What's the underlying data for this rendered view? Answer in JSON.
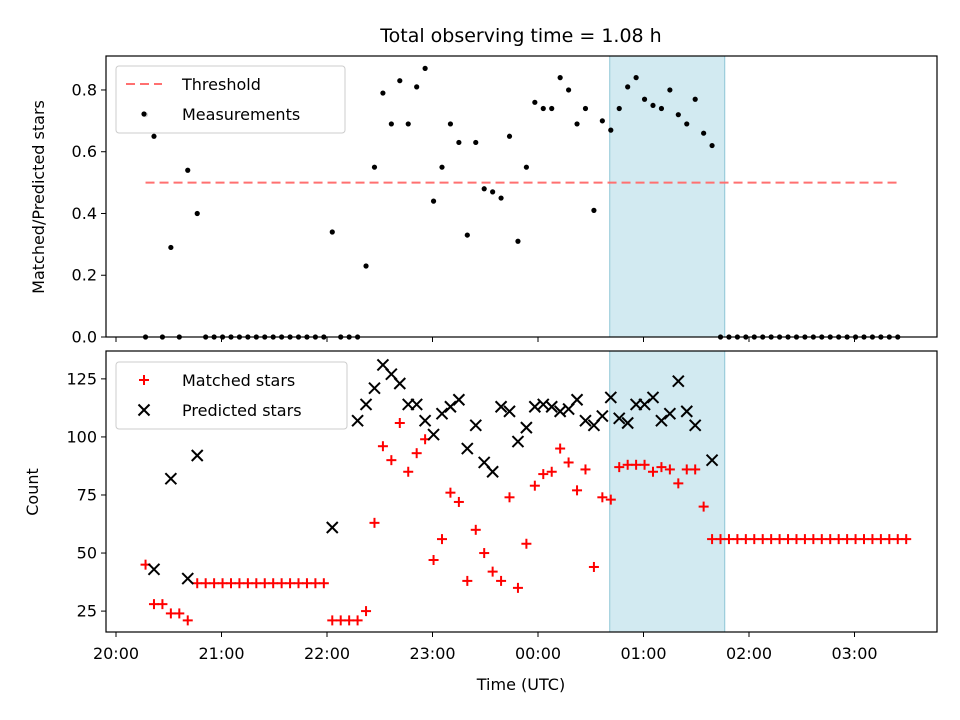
{
  "title": "Total observing time = 1.08 h",
  "xlabel": "Time (UTC)",
  "x_ticks": [
    "20:00",
    "21:00",
    "22:00",
    "23:00",
    "00:00",
    "01:00",
    "02:00",
    "03:00"
  ],
  "colors": {
    "threshold": "#ff7070",
    "measurements": "#000000",
    "matched": "#ff0000",
    "predicted": "#000000",
    "span_fill": "#add8e6"
  },
  "chart_data": [
    {
      "type": "scatter",
      "ylabel": "Matched/Predicted stars",
      "ylim": [
        0,
        0.91
      ],
      "y_ticks": [
        0.0,
        0.2,
        0.4,
        0.6,
        0.8
      ],
      "x_unit": "hours after 20:00 UTC",
      "highlight_span": [
        4.68,
        5.77
      ],
      "legend": {
        "position": "upper-left",
        "entries": [
          "Threshold",
          "Measurements"
        ]
      },
      "threshold": {
        "name": "Threshold",
        "value": 0.5,
        "x_range": [
          0.28,
          7.43
        ],
        "style": "dashed"
      },
      "series": [
        {
          "name": "Measurements",
          "points": [
            [
              0.28,
              0.0
            ],
            [
              0.28,
              0.72
            ],
            [
              0.36,
              0.65
            ],
            [
              0.44,
              0.0
            ],
            [
              0.52,
              0.29
            ],
            [
              0.6,
              0.0
            ],
            [
              0.68,
              0.54
            ],
            [
              0.77,
              0.4
            ],
            [
              0.85,
              0.0
            ],
            [
              0.93,
              0.0
            ],
            [
              1.01,
              0.0
            ],
            [
              1.09,
              0.0
            ],
            [
              1.17,
              0.0
            ],
            [
              1.25,
              0.0
            ],
            [
              1.33,
              0.0
            ],
            [
              1.41,
              0.0
            ],
            [
              1.49,
              0.0
            ],
            [
              1.57,
              0.0
            ],
            [
              1.65,
              0.0
            ],
            [
              1.73,
              0.0
            ],
            [
              1.81,
              0.0
            ],
            [
              1.89,
              0.0
            ],
            [
              1.97,
              0.0
            ],
            [
              2.05,
              0.34
            ],
            [
              2.13,
              0.0
            ],
            [
              2.21,
              0.0
            ],
            [
              2.29,
              0.0
            ],
            [
              2.37,
              0.23
            ],
            [
              2.45,
              0.55
            ],
            [
              2.53,
              0.79
            ],
            [
              2.61,
              0.69
            ],
            [
              2.69,
              0.83
            ],
            [
              2.77,
              0.69
            ],
            [
              2.85,
              0.81
            ],
            [
              2.93,
              0.87
            ],
            [
              3.01,
              0.44
            ],
            [
              3.09,
              0.55
            ],
            [
              3.17,
              0.69
            ],
            [
              3.25,
              0.63
            ],
            [
              3.33,
              0.33
            ],
            [
              3.41,
              0.63
            ],
            [
              3.49,
              0.48
            ],
            [
              3.57,
              0.47
            ],
            [
              3.65,
              0.45
            ],
            [
              3.73,
              0.65
            ],
            [
              3.81,
              0.31
            ],
            [
              3.89,
              0.55
            ],
            [
              3.97,
              0.76
            ],
            [
              4.05,
              0.74
            ],
            [
              4.13,
              0.74
            ],
            [
              4.21,
              0.84
            ],
            [
              4.29,
              0.8
            ],
            [
              4.37,
              0.69
            ],
            [
              4.45,
              0.74
            ],
            [
              4.53,
              0.41
            ],
            [
              4.61,
              0.7
            ],
            [
              4.69,
              0.67
            ],
            [
              4.77,
              0.74
            ],
            [
              4.85,
              0.81
            ],
            [
              4.93,
              0.84
            ],
            [
              5.01,
              0.77
            ],
            [
              5.09,
              0.75
            ],
            [
              5.17,
              0.74
            ],
            [
              5.25,
              0.8
            ],
            [
              5.33,
              0.72
            ],
            [
              5.41,
              0.69
            ],
            [
              5.49,
              0.77
            ],
            [
              5.57,
              0.66
            ],
            [
              5.65,
              0.62
            ],
            [
              5.73,
              0.0
            ],
            [
              5.81,
              0.0
            ],
            [
              5.89,
              0.0
            ],
            [
              5.97,
              0.0
            ],
            [
              6.05,
              0.0
            ],
            [
              6.13,
              0.0
            ],
            [
              6.21,
              0.0
            ],
            [
              6.29,
              0.0
            ],
            [
              6.37,
              0.0
            ],
            [
              6.45,
              0.0
            ],
            [
              6.53,
              0.0
            ],
            [
              6.61,
              0.0
            ],
            [
              6.69,
              0.0
            ],
            [
              6.77,
              0.0
            ],
            [
              6.85,
              0.0
            ],
            [
              6.93,
              0.0
            ],
            [
              7.01,
              0.0
            ],
            [
              7.09,
              0.0
            ],
            [
              7.17,
              0.0
            ],
            [
              7.25,
              0.0
            ],
            [
              7.33,
              0.0
            ],
            [
              7.41,
              0.0
            ]
          ]
        }
      ]
    },
    {
      "type": "scatter",
      "ylabel": "Count",
      "ylim": [
        16,
        137
      ],
      "y_ticks": [
        25,
        50,
        75,
        100,
        125
      ],
      "x_unit": "hours after 20:00 UTC",
      "highlight_span": [
        4.68,
        5.77
      ],
      "legend": {
        "position": "upper-left",
        "entries": [
          "Matched stars",
          "Predicted stars"
        ]
      },
      "series": [
        {
          "name": "Matched stars",
          "marker": "plus",
          "points": [
            [
              0.28,
              45
            ],
            [
              0.36,
              28
            ],
            [
              0.44,
              28
            ],
            [
              0.52,
              24
            ],
            [
              0.6,
              24
            ],
            [
              0.68,
              21
            ],
            [
              0.77,
              37
            ],
            [
              0.85,
              37
            ],
            [
              0.93,
              37
            ],
            [
              1.01,
              37
            ],
            [
              1.09,
              37
            ],
            [
              1.17,
              37
            ],
            [
              1.25,
              37
            ],
            [
              1.33,
              37
            ],
            [
              1.41,
              37
            ],
            [
              1.49,
              37
            ],
            [
              1.57,
              37
            ],
            [
              1.65,
              37
            ],
            [
              1.73,
              37
            ],
            [
              1.81,
              37
            ],
            [
              1.89,
              37
            ],
            [
              1.97,
              37
            ],
            [
              2.05,
              21
            ],
            [
              2.13,
              21
            ],
            [
              2.21,
              21
            ],
            [
              2.29,
              21
            ],
            [
              2.37,
              25
            ],
            [
              2.45,
              63
            ],
            [
              2.53,
              96
            ],
            [
              2.61,
              90
            ],
            [
              2.69,
              106
            ],
            [
              2.77,
              85
            ],
            [
              2.85,
              93
            ],
            [
              2.93,
              99
            ],
            [
              3.01,
              47
            ],
            [
              3.09,
              56
            ],
            [
              3.17,
              76
            ],
            [
              3.25,
              72
            ],
            [
              3.33,
              38
            ],
            [
              3.41,
              60
            ],
            [
              3.49,
              50
            ],
            [
              3.57,
              42
            ],
            [
              3.65,
              38
            ],
            [
              3.73,
              74
            ],
            [
              3.81,
              35
            ],
            [
              3.89,
              54
            ],
            [
              3.97,
              79
            ],
            [
              4.05,
              84
            ],
            [
              4.13,
              85
            ],
            [
              4.21,
              95
            ],
            [
              4.29,
              89
            ],
            [
              4.37,
              77
            ],
            [
              4.45,
              86
            ],
            [
              4.53,
              44
            ],
            [
              4.61,
              74
            ],
            [
              4.69,
              73
            ],
            [
              4.77,
              87
            ],
            [
              4.85,
              88
            ],
            [
              4.93,
              88
            ],
            [
              5.01,
              88
            ],
            [
              5.09,
              85
            ],
            [
              5.17,
              87
            ],
            [
              5.25,
              86
            ],
            [
              5.33,
              80
            ],
            [
              5.41,
              86
            ],
            [
              5.49,
              86
            ],
            [
              5.57,
              70
            ],
            [
              5.65,
              56
            ],
            [
              5.73,
              56
            ],
            [
              5.81,
              56
            ],
            [
              5.89,
              56
            ],
            [
              5.97,
              56
            ],
            [
              6.05,
              56
            ],
            [
              6.13,
              56
            ],
            [
              6.21,
              56
            ],
            [
              6.29,
              56
            ],
            [
              6.37,
              56
            ],
            [
              6.45,
              56
            ],
            [
              6.53,
              56
            ],
            [
              6.61,
              56
            ],
            [
              6.69,
              56
            ],
            [
              6.77,
              56
            ],
            [
              6.85,
              56
            ],
            [
              6.93,
              56
            ],
            [
              7.01,
              56
            ],
            [
              7.09,
              56
            ],
            [
              7.17,
              56
            ],
            [
              7.25,
              56
            ],
            [
              7.33,
              56
            ],
            [
              7.41,
              56
            ],
            [
              7.49,
              56
            ]
          ]
        },
        {
          "name": "Predicted stars",
          "marker": "x",
          "points": [
            [
              0.36,
              43
            ],
            [
              0.52,
              82
            ],
            [
              0.68,
              39
            ],
            [
              0.77,
              92
            ],
            [
              2.05,
              61
            ],
            [
              2.29,
              107
            ],
            [
              2.37,
              114
            ],
            [
              2.45,
              121
            ],
            [
              2.53,
              131
            ],
            [
              2.61,
              127
            ],
            [
              2.69,
              123
            ],
            [
              2.77,
              114
            ],
            [
              2.85,
              114
            ],
            [
              2.93,
              107
            ],
            [
              3.01,
              101
            ],
            [
              3.09,
              110
            ],
            [
              3.17,
              113
            ],
            [
              3.25,
              116
            ],
            [
              3.33,
              95
            ],
            [
              3.41,
              105
            ],
            [
              3.49,
              89
            ],
            [
              3.57,
              85
            ],
            [
              3.65,
              113
            ],
            [
              3.73,
              111
            ],
            [
              3.81,
              98
            ],
            [
              3.89,
              104
            ],
            [
              3.97,
              113
            ],
            [
              4.05,
              114
            ],
            [
              4.13,
              113
            ],
            [
              4.21,
              111
            ],
            [
              4.29,
              112
            ],
            [
              4.37,
              116
            ],
            [
              4.45,
              107
            ],
            [
              4.53,
              105
            ],
            [
              4.61,
              109
            ],
            [
              4.69,
              117
            ],
            [
              4.77,
              108
            ],
            [
              4.85,
              106
            ],
            [
              4.93,
              114
            ],
            [
              5.01,
              114
            ],
            [
              5.09,
              117
            ],
            [
              5.17,
              107
            ],
            [
              5.25,
              110
            ],
            [
              5.33,
              124
            ],
            [
              5.41,
              111
            ],
            [
              5.49,
              105
            ],
            [
              5.65,
              90
            ]
          ]
        }
      ]
    }
  ]
}
